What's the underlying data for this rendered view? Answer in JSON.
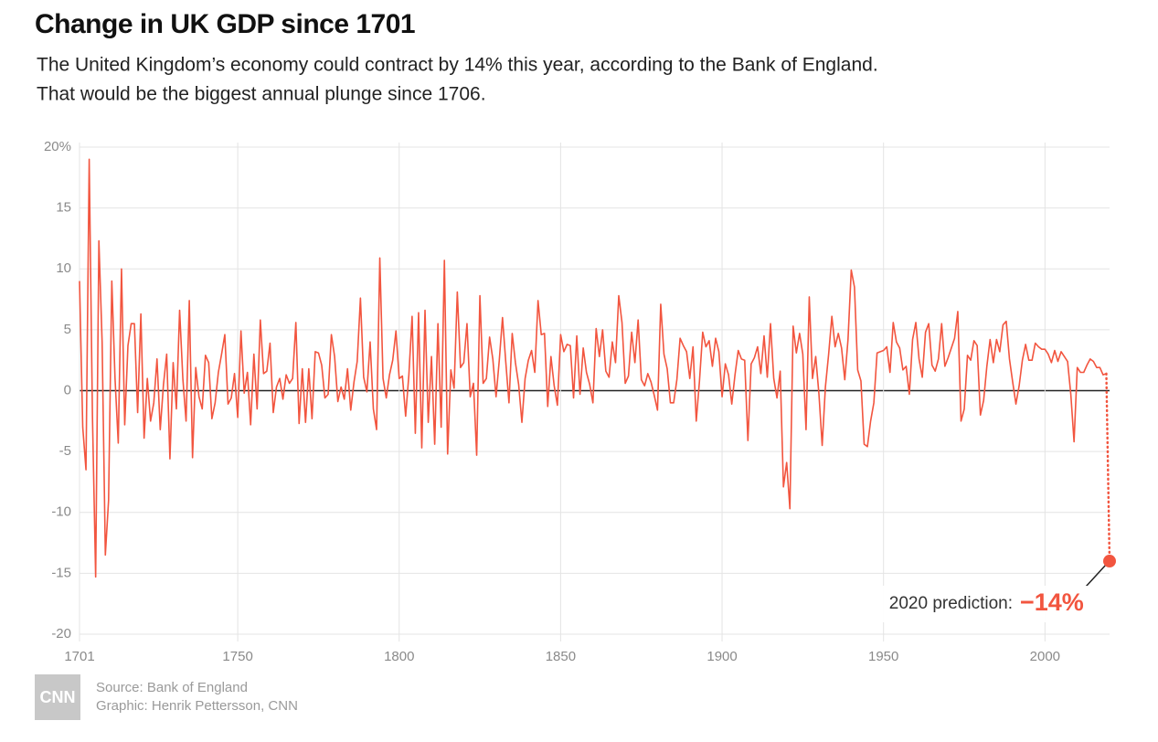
{
  "chart_data": {
    "type": "line",
    "title": "Change in UK GDP since 1701",
    "subtitle": [
      "The United Kingdom’s economy could contract by 14% this year, according to the Bank of England.",
      "That would be the biggest annual plunge since 1706."
    ],
    "x": [
      1701,
      1702,
      1703,
      1704,
      1705,
      1706,
      1707,
      1708,
      1709,
      1710,
      1711,
      1712,
      1713,
      1714,
      1715,
      1716,
      1717,
      1718,
      1719,
      1720,
      1721,
      1722,
      1723,
      1724,
      1725,
      1726,
      1727,
      1728,
      1729,
      1730,
      1731,
      1732,
      1733,
      1734,
      1735,
      1736,
      1737,
      1738,
      1739,
      1740,
      1741,
      1742,
      1743,
      1744,
      1745,
      1746,
      1747,
      1748,
      1749,
      1750,
      1751,
      1752,
      1753,
      1754,
      1755,
      1756,
      1757,
      1758,
      1759,
      1760,
      1761,
      1762,
      1763,
      1764,
      1765,
      1766,
      1767,
      1768,
      1769,
      1770,
      1771,
      1772,
      1773,
      1774,
      1775,
      1776,
      1777,
      1778,
      1779,
      1780,
      1781,
      1782,
      1783,
      1784,
      1785,
      1786,
      1787,
      1788,
      1789,
      1790,
      1791,
      1792,
      1793,
      1794,
      1795,
      1796,
      1797,
      1798,
      1799,
      1800,
      1801,
      1802,
      1803,
      1804,
      1805,
      1806,
      1807,
      1808,
      1809,
      1810,
      1811,
      1812,
      1813,
      1814,
      1815,
      1816,
      1817,
      1818,
      1819,
      1820,
      1821,
      1822,
      1823,
      1824,
      1825,
      1826,
      1827,
      1828,
      1829,
      1830,
      1831,
      1832,
      1833,
      1834,
      1835,
      1836,
      1837,
      1838,
      1839,
      1840,
      1841,
      1842,
      1843,
      1844,
      1845,
      1846,
      1847,
      1848,
      1849,
      1850,
      1851,
      1852,
      1853,
      1854,
      1855,
      1856,
      1857,
      1858,
      1859,
      1860,
      1861,
      1862,
      1863,
      1864,
      1865,
      1866,
      1867,
      1868,
      1869,
      1870,
      1871,
      1872,
      1873,
      1874,
      1875,
      1876,
      1877,
      1878,
      1879,
      1880,
      1881,
      1882,
      1883,
      1884,
      1885,
      1886,
      1887,
      1888,
      1889,
      1890,
      1891,
      1892,
      1893,
      1894,
      1895,
      1896,
      1897,
      1898,
      1899,
      1900,
      1901,
      1902,
      1903,
      1904,
      1905,
      1906,
      1907,
      1908,
      1909,
      1910,
      1911,
      1912,
      1913,
      1914,
      1915,
      1916,
      1917,
      1918,
      1919,
      1920,
      1921,
      1922,
      1923,
      1924,
      1925,
      1926,
      1927,
      1928,
      1929,
      1930,
      1931,
      1932,
      1933,
      1934,
      1935,
      1936,
      1937,
      1938,
      1939,
      1940,
      1941,
      1942,
      1943,
      1944,
      1945,
      1946,
      1947,
      1948,
      1949,
      1950,
      1951,
      1952,
      1953,
      1954,
      1955,
      1956,
      1957,
      1958,
      1959,
      1960,
      1961,
      1962,
      1963,
      1964,
      1965,
      1966,
      1967,
      1968,
      1969,
      1970,
      1971,
      1972,
      1973,
      1974,
      1975,
      1976,
      1977,
      1978,
      1979,
      1980,
      1981,
      1982,
      1983,
      1984,
      1985,
      1986,
      1987,
      1988,
      1989,
      1990,
      1991,
      1992,
      1993,
      1994,
      1995,
      1996,
      1997,
      1998,
      1999,
      2000,
      2001,
      2002,
      2003,
      2004,
      2005,
      2006,
      2007,
      2008,
      2009,
      2010,
      2011,
      2012,
      2013,
      2014,
      2015,
      2016,
      2017,
      2018,
      2019
    ],
    "series": [
      {
        "color": "#f2553f",
        "values": [
          9,
          -3,
          -6.5,
          19,
          -2,
          -15.3,
          12.3,
          4,
          -13.5,
          -9,
          9,
          1,
          -4.3,
          10,
          -2.8,
          3.7,
          5.5,
          5.5,
          -1.8,
          6.3,
          -3.9,
          1,
          -2.5,
          -1,
          2.6,
          -3.2,
          0.5,
          3,
          -5.6,
          2.3,
          -1.5,
          6.6,
          1,
          -2.5,
          7.4,
          -5.5,
          1.9,
          -0.5,
          -1.5,
          2.9,
          2.3,
          -2.3,
          -1,
          1.5,
          3,
          4.6,
          -1.1,
          -0.6,
          1.4,
          -2.2,
          4.9,
          -0.2,
          1.5,
          -2.8,
          3,
          -1.5,
          5.8,
          1.4,
          1.6,
          3.9,
          -1.8,
          0.3,
          1,
          -0.7,
          1.3,
          0.6,
          1,
          5.6,
          -2.7,
          1.8,
          -2.6,
          1.8,
          -2.3,
          3.2,
          3.1,
          2.1,
          -0.6,
          -0.3,
          4.6,
          2.8,
          -0.9,
          0.3,
          -0.7,
          1.8,
          -1.6,
          0.7,
          2.4,
          7.6,
          1.1,
          -0.1,
          4,
          -1.5,
          -3.2,
          10.9,
          1,
          -0.6,
          1.3,
          2.5,
          4.9,
          1,
          1.2,
          -2.1,
          1.3,
          6.1,
          -3.5,
          6.4,
          -4.7,
          6.6,
          -2.6,
          2.8,
          -4.4,
          5.5,
          -3,
          10.7,
          -5.2,
          1.7,
          0.2,
          8.1,
          1.9,
          2.3,
          5.5,
          -0.5,
          0.6,
          -5.3,
          7.8,
          0.6,
          1,
          4.4,
          2.6,
          -0.5,
          2.5,
          6,
          2.4,
          -1,
          4.7,
          2.3,
          0.5,
          -2.6,
          1,
          2.5,
          3.3,
          1.5,
          7.4,
          4.6,
          4.7,
          -1.3,
          2.8,
          0.4,
          -1.2,
          4.6,
          3.2,
          3.8,
          3.7,
          -0.6,
          4.5,
          -0.3,
          3.5,
          1.5,
          0.5,
          -1,
          5.1,
          2.8,
          5,
          1.6,
          1.1,
          4,
          2.3,
          7.8,
          5.6,
          0.6,
          1.2,
          4.8,
          2.3,
          5.8,
          0.9,
          0.4,
          1.4,
          0.7,
          -0.4,
          -1.6,
          7.1,
          3,
          1.8,
          -1,
          -1,
          0.9,
          4.3,
          3.7,
          3.2,
          1,
          3.6,
          -2.5,
          0.8,
          4.8,
          3.6,
          4.1,
          2,
          4.3,
          3.2,
          -0.5,
          2.2,
          1.3,
          -1.1,
          1.3,
          3.3,
          2.6,
          2.5,
          -4.1,
          2.2,
          2.7,
          3.6,
          1.4,
          4.5,
          1.1,
          5.5,
          1,
          -0.6,
          1.6,
          -7.9,
          -5.9,
          -9.7,
          5.3,
          3.1,
          4.7,
          3,
          -3.2,
          7.7,
          1,
          2.8,
          -0.3,
          -4.5,
          0.3,
          3,
          6.1,
          3.6,
          4.7,
          3.5,
          0.9,
          4.2,
          9.9,
          8.5,
          1.7,
          0.8,
          -4.4,
          -4.6,
          -2.5,
          -1,
          3.1,
          3.2,
          3.3,
          3.6,
          1.5,
          5.6,
          4,
          3.5,
          1.7,
          2,
          -0.3,
          4.2,
          5.6,
          2.6,
          1.1,
          4.8,
          5.5,
          2.1,
          1.6,
          2.6,
          5.5,
          2,
          2.7,
          3.5,
          4.3,
          6.5,
          -2.5,
          -1.5,
          2.9,
          2.5,
          4.1,
          3.7,
          -2,
          -0.8,
          2,
          4.2,
          2.3,
          4.2,
          3.2,
          5.4,
          5.7,
          2.6,
          0.7,
          -1.1,
          0.4,
          2.5,
          3.8,
          2.5,
          2.5,
          3.9,
          3.6,
          3.4,
          3.4,
          3,
          2.3,
          3.3,
          2.4,
          3.2,
          2.8,
          2.4,
          -0.3,
          -4.2,
          1.9,
          1.5,
          1.5,
          2.1,
          2.6,
          2.4,
          1.9,
          1.9,
          1.3,
          1.4
        ]
      }
    ],
    "prediction": {
      "x": 2020,
      "value": -14,
      "text": "2020 prediction:",
      "value_label": "−14%",
      "color": "#f2553f"
    },
    "xlim": [
      1701,
      2020
    ],
    "xticks": [
      1701,
      1750,
      1800,
      1850,
      1900,
      1950,
      2000
    ],
    "ylim": [
      -20,
      20
    ],
    "yticks": [
      -20,
      -15,
      -10,
      -5,
      0,
      5,
      10,
      15,
      {
        "value": 20,
        "label": "20%"
      }
    ],
    "grid": true,
    "logo": "CNN",
    "source": "Source: Bank of England",
    "credit": "Graphic: Henrik Pettersson, CNN"
  }
}
